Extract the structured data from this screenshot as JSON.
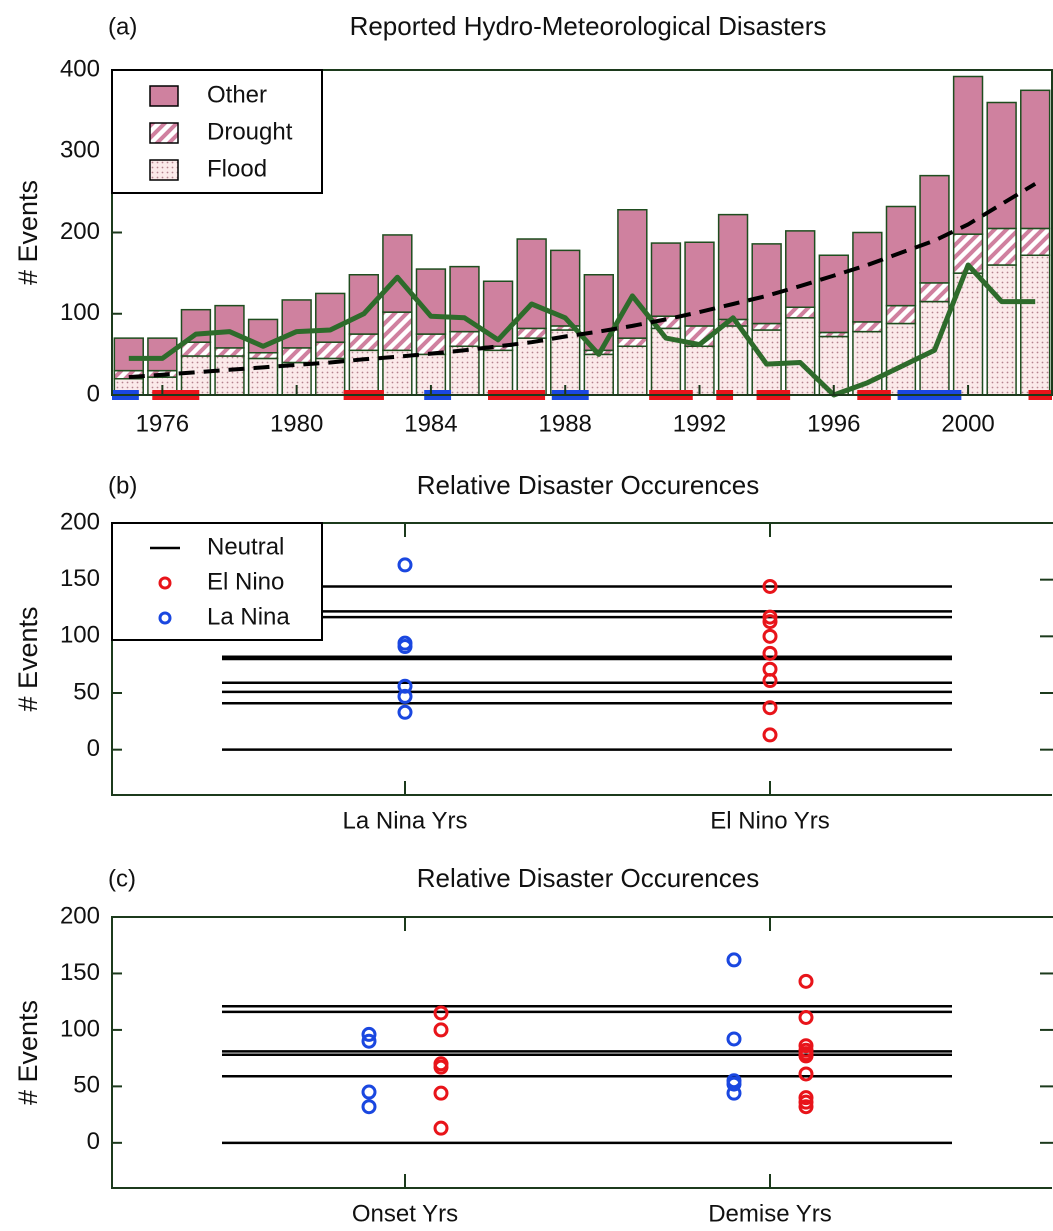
{
  "chart_data": [
    {
      "type": "stacked_bar",
      "label": "(a)",
      "title": "Reported Hydro-Meteorological Disasters",
      "y_label": "# Events",
      "x": [
        1975,
        1976,
        1977,
        1978,
        1979,
        1980,
        1981,
        1982,
        1983,
        1984,
        1985,
        1986,
        1987,
        1988,
        1989,
        1990,
        1991,
        1992,
        1993,
        1994,
        1995,
        1996,
        1997,
        1998,
        1999,
        2000,
        2001,
        2002
      ],
      "series": [
        {
          "name": "Flood",
          "color": "#b5848f",
          "pattern": "dots",
          "values": [
            20,
            22,
            48,
            48,
            45,
            40,
            45,
            55,
            55,
            50,
            60,
            55,
            70,
            80,
            50,
            60,
            82,
            60,
            85,
            80,
            95,
            72,
            78,
            88,
            115,
            150,
            160,
            172
          ]
        },
        {
          "name": "Drought",
          "color": "#d0809f",
          "pattern": "diagonal",
          "values": [
            10,
            8,
            17,
            10,
            7,
            18,
            20,
            20,
            47,
            25,
            18,
            5,
            12,
            5,
            5,
            10,
            15,
            25,
            8,
            8,
            13,
            5,
            12,
            22,
            23,
            48,
            45,
            33
          ]
        },
        {
          "name": "Other",
          "color": "#cf819f",
          "pattern": "solid",
          "values": [
            40,
            40,
            40,
            52,
            41,
            59,
            60,
            73,
            95,
            80,
            80,
            80,
            110,
            93,
            93,
            158,
            90,
            103,
            129,
            98,
            94,
            95,
            110,
            122,
            132,
            194,
            155,
            170
          ]
        }
      ],
      "lines": [
        {
          "color": "#2e6b2b",
          "style": "solid",
          "values": [
            45,
            45,
            75,
            78,
            60,
            78,
            80,
            100,
            145,
            97,
            95,
            68,
            112,
            95,
            50,
            122,
            70,
            62,
            95,
            38,
            40,
            0,
            15,
            35,
            55,
            160,
            115,
            115
          ]
        },
        {
          "color": "#000000",
          "style": "dashed",
          "values": [
            22,
            25,
            28,
            31,
            34,
            37,
            40,
            44,
            47,
            51,
            55,
            60,
            65,
            72,
            78,
            85,
            93,
            102,
            112,
            122,
            134,
            147,
            160,
            175,
            190,
            210,
            235,
            260
          ]
        }
      ],
      "el_nino_color": "#e8141a",
      "el_nino_periods": [
        [
          1975.7,
          1977.1
        ],
        [
          1981.4,
          1982.6
        ],
        [
          1985.7,
          1987.4
        ],
        [
          1990.5,
          1991.8
        ],
        [
          1992.5,
          1993.0
        ],
        [
          1993.7,
          1994.7
        ],
        [
          1996.7,
          1997.7
        ],
        [
          2001.8,
          2002.5
        ]
      ],
      "la_nina_color": "#1a47e0",
      "la_nina_periods": [
        [
          1974.5,
          1975.3
        ],
        [
          1983.8,
          1984.6
        ],
        [
          1987.6,
          1988.7
        ],
        [
          1997.9,
          1999.8
        ]
      ],
      "xlim": [
        1974.5,
        2002.5
      ],
      "xticks": [
        1976,
        1980,
        1984,
        1988,
        1992,
        1996,
        2000
      ],
      "ylim": [
        0,
        400
      ],
      "yticks": [
        0,
        100,
        200,
        300,
        400
      ],
      "legend": "upper left"
    },
    {
      "type": "strip",
      "label": "(b)",
      "title": "Relative Disaster Occurences",
      "y_label": "# Events",
      "categories": [
        "La Nina Yrs",
        "El Nino Yrs"
      ],
      "neutral": {
        "name": "Neutral",
        "color": "#000000",
        "values": [
          144,
          122,
          117,
          82,
          80,
          59,
          51,
          41,
          0
        ]
      },
      "series": [
        {
          "name": "El Nino",
          "color": "#e8141a",
          "values": [
            [],
            [
              144,
              117,
              113,
              100,
              85,
              71,
              61,
              37,
              13
            ]
          ]
        },
        {
          "name": "La Nina",
          "color": "#1a47e0",
          "values": [
            [
              163,
              94,
              91,
              56,
              47,
              33
            ],
            []
          ]
        }
      ],
      "ylim": [
        -40,
        200
      ],
      "yticks": [
        0,
        50,
        100,
        150,
        200
      ],
      "legend": "upper left"
    },
    {
      "type": "strip",
      "label": "(c)",
      "title": "Relative Disaster Occurences",
      "y_label": "# Events",
      "categories": [
        "Onset Yrs",
        "Demise Yrs"
      ],
      "neutral": {
        "color": "#000000",
        "values": [
          121,
          116,
          81,
          78,
          59,
          0
        ]
      },
      "series": [
        {
          "color": "#1a47e0",
          "values": [
            [
              96,
              90,
              45,
              32
            ],
            [
              162,
              92,
              55,
              52,
              44
            ]
          ]
        },
        {
          "color": "#e8141a",
          "values": [
            [
              115,
              100,
              70,
              67,
              44,
              13
            ],
            [
              143,
              111,
              86,
              82,
              79,
              77,
              61,
              40,
              36,
              32
            ]
          ]
        }
      ],
      "ylim": [
        -40,
        200
      ],
      "yticks": [
        0,
        50,
        100,
        150,
        200
      ]
    }
  ]
}
